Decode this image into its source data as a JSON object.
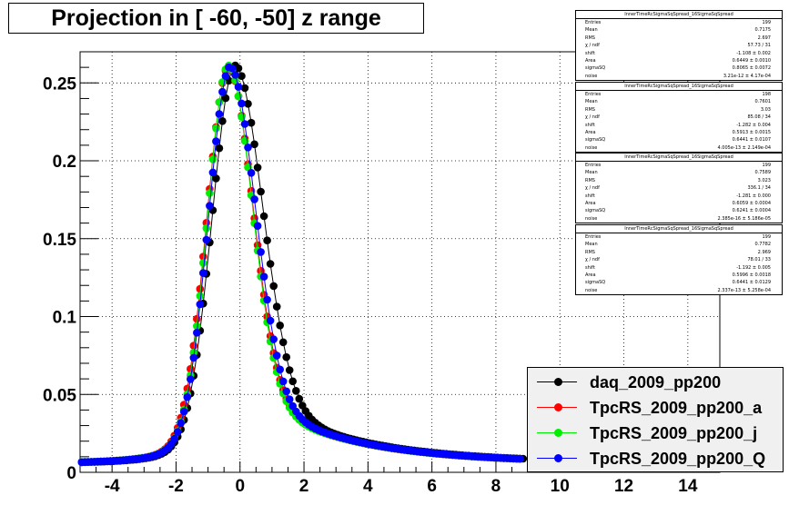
{
  "title": "Projection in [ -60, -50] z range",
  "chart_data": {
    "type": "scatter",
    "title": "Projection in [ -60, -50] z range",
    "xlabel": "",
    "ylabel": "",
    "xlim": [
      -5,
      15
    ],
    "ylim": [
      0,
      0.27
    ],
    "xticks": [
      -4,
      -2,
      0,
      2,
      4,
      6,
      8,
      10,
      12,
      14
    ],
    "xtick_labels": [
      "-4",
      "-2",
      "0",
      "2",
      "4",
      "6",
      "8",
      "10",
      "12",
      "14"
    ],
    "yticks": [
      0,
      0.05,
      0.1,
      0.15,
      0.2,
      0.25
    ],
    "ytick_labels": [
      "0",
      "0.05",
      "0.1",
      "0.15",
      "0.2",
      "0.25"
    ],
    "grid": true,
    "legend_position": "bottom-right",
    "series": [
      {
        "name": "daq_2009_pp200",
        "color": "#000000",
        "peak": -0.2,
        "width_left": 0.7,
        "width_right": 0.88,
        "amp": 0.255
      },
      {
        "name": "TpcRS_2009_pp200_a",
        "color": "#ff0000",
        "peak": -0.4,
        "width_left": 0.66,
        "width_right": 0.78,
        "amp": 0.254
      },
      {
        "name": "TpcRS_2009_pp200_j",
        "color": "#00ee00",
        "peak": -0.4,
        "width_left": 0.64,
        "width_right": 0.76,
        "amp": 0.255
      },
      {
        "name": "TpcRS_2009_pp200_Q",
        "color": "#0000ff",
        "peak": -0.35,
        "width_left": 0.66,
        "width_right": 0.8,
        "amp": 0.254
      }
    ]
  },
  "stats": [
    {
      "title": "InnerTimeRcSigmaSqSpread_16SigmaSqSpread",
      "rows": [
        [
          "Entries",
          "199"
        ],
        [
          "Mean",
          "0.7175"
        ],
        [
          "RMS",
          "2.697"
        ],
        [
          "χ  / ndf",
          "57.73 / 31"
        ],
        [
          "shift",
          "-1.108 ± 0.002"
        ],
        [
          "Area",
          "0.6449 ± 0.0010"
        ],
        [
          "sigmaSQ",
          "0.8065 ± 0.0072"
        ],
        [
          "noise",
          "3.21e-12 ± 4.17e-04"
        ]
      ]
    },
    {
      "title": "InnerTimeRcSigmaSqSpread_16SigmaSqSpread",
      "rows": [
        [
          "Entries",
          "198"
        ],
        [
          "Mean",
          "0.7601"
        ],
        [
          "RMS",
          "3.03"
        ],
        [
          "χ  / ndf",
          "85.08 / 34"
        ],
        [
          "shift",
          "-1.282 ± 0.004"
        ],
        [
          "Area",
          "0.5913 ± 0.0015"
        ],
        [
          "sigmaSQ",
          "0.6441 ± 0.0107"
        ],
        [
          "noise",
          "4.005e-13 ± 2.149e-04"
        ]
      ]
    },
    {
      "title": "InnerTimeRcSigmaSqSpread_16SigmaSqSpread",
      "rows": [
        [
          "Entries",
          "199"
        ],
        [
          "Mean",
          "0.7589"
        ],
        [
          "RMS",
          "3.023"
        ],
        [
          "χ  / ndf",
          "336.1 / 34"
        ],
        [
          "shift",
          "-1.281 ± 0.000"
        ],
        [
          "Area",
          "0.6059 ± 0.0004"
        ],
        [
          "sigmaSQ",
          "0.6241 ± 0.0004"
        ],
        [
          "noise",
          "2.385e-16 ± 5.186e-05"
        ]
      ]
    },
    {
      "title": "InnerTimeRcSigmaSqSpread_16SigmaSqSpread",
      "rows": [
        [
          "Entries",
          "199"
        ],
        [
          "Mean",
          "0.7782"
        ],
        [
          "RMS",
          "2.969"
        ],
        [
          "χ  / ndf",
          "78.01 / 33"
        ],
        [
          "shift",
          "-1.192 ± 0.005"
        ],
        [
          "Area",
          "0.5996 ± 0.0018"
        ],
        [
          "sigmaSQ",
          "0.6441 ± 0.0129"
        ],
        [
          "noise",
          "2.337e-13 ± 5.258e-04"
        ]
      ]
    }
  ],
  "legend": [
    {
      "label": "daq_2009_pp200",
      "color": "#000000"
    },
    {
      "label": "TpcRS_2009_pp200_a",
      "color": "#ff0000"
    },
    {
      "label": "TpcRS_2009_pp200_j",
      "color": "#00ee00"
    },
    {
      "label": "TpcRS_2009_pp200_Q",
      "color": "#0000ff"
    }
  ]
}
